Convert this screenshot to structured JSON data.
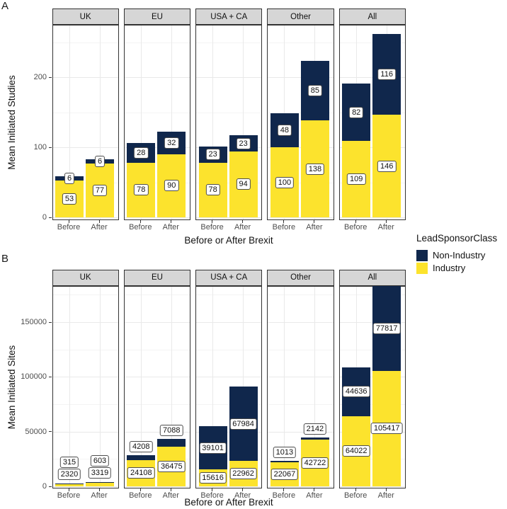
{
  "figure": {
    "panel_tags": [
      "A",
      "B"
    ],
    "legend": {
      "title": "LeadSponsorClass",
      "items": [
        {
          "label": "Non-Industry",
          "color": "#10274C"
        },
        {
          "label": "Industry",
          "color": "#FCE32D"
        }
      ]
    },
    "colors": {
      "strip_bg": "#D6D6D6",
      "panel_border": "#333333",
      "grid_major": "#E9E9E9",
      "grid_minor": "#F4F4F4",
      "tick_text": "#4D4D4D"
    }
  },
  "chart_data": [
    {
      "type": "bar",
      "stacked": true,
      "panel_tag": "A",
      "ylabel": "Mean Initiated Studies",
      "xlabel": "Before or After Brexit",
      "categories": [
        "Before",
        "After"
      ],
      "stack_order": [
        "Industry",
        "Non-Industry"
      ],
      "yticks": [
        0,
        100,
        200
      ],
      "yticks_minor": [
        50,
        150,
        250
      ],
      "ylim": [
        0,
        275
      ],
      "grid": true,
      "legend_position": "right",
      "small_label_policy": "center",
      "facets": [
        {
          "label": "UK",
          "bars": [
            {
              "category": "Before",
              "Industry": 53,
              "Non-Industry": 6
            },
            {
              "category": "After",
              "Industry": 77,
              "Non-Industry": 6
            }
          ]
        },
        {
          "label": "EU",
          "bars": [
            {
              "category": "Before",
              "Industry": 78,
              "Non-Industry": 28
            },
            {
              "category": "After",
              "Industry": 90,
              "Non-Industry": 32
            }
          ]
        },
        {
          "label": "USA + CA",
          "bars": [
            {
              "category": "Before",
              "Industry": 78,
              "Non-Industry": 23
            },
            {
              "category": "After",
              "Industry": 94,
              "Non-Industry": 23
            }
          ]
        },
        {
          "label": "Other",
          "bars": [
            {
              "category": "Before",
              "Industry": 100,
              "Non-Industry": 48
            },
            {
              "category": "After",
              "Industry": 138,
              "Non-Industry": 85
            }
          ]
        },
        {
          "label": "All",
          "bars": [
            {
              "category": "Before",
              "Industry": 109,
              "Non-Industry": 82
            },
            {
              "category": "After",
              "Industry": 146,
              "Non-Industry": 116
            }
          ]
        }
      ]
    },
    {
      "type": "bar",
      "stacked": true,
      "panel_tag": "B",
      "ylabel": "Mean Initiated Sites",
      "xlabel": "Before or After Brexit",
      "categories": [
        "Before",
        "After"
      ],
      "stack_order": [
        "Industry",
        "Non-Industry"
      ],
      "yticks": [
        0,
        50000,
        100000,
        150000
      ],
      "yticks_minor": [
        25000,
        75000,
        125000,
        175000
      ],
      "ylim": [
        0,
        183300
      ],
      "grid": true,
      "legend_position": "right",
      "small_label_policy": "above-if-small",
      "facets": [
        {
          "label": "UK",
          "bars": [
            {
              "category": "Before",
              "Industry": 2320,
              "Non-Industry": 315
            },
            {
              "category": "After",
              "Industry": 3319,
              "Non-Industry": 603
            }
          ]
        },
        {
          "label": "EU",
          "bars": [
            {
              "category": "Before",
              "Industry": 24108,
              "Non-Industry": 4208
            },
            {
              "category": "After",
              "Industry": 36475,
              "Non-Industry": 7088
            }
          ]
        },
        {
          "label": "USA + CA",
          "bars": [
            {
              "category": "Before",
              "Industry": 15616,
              "Non-Industry": 39101
            },
            {
              "category": "After",
              "Industry": 22962,
              "Non-Industry": 67984
            }
          ]
        },
        {
          "label": "Other",
          "bars": [
            {
              "category": "Before",
              "Industry": 22067,
              "Non-Industry": 1013
            },
            {
              "category": "After",
              "Industry": 42722,
              "Non-Industry": 2142
            }
          ]
        },
        {
          "label": "All",
          "bars": [
            {
              "category": "Before",
              "Industry": 64022,
              "Non-Industry": 44636
            },
            {
              "category": "After",
              "Industry": 105417,
              "Non-Industry": 77817
            }
          ]
        }
      ]
    }
  ]
}
